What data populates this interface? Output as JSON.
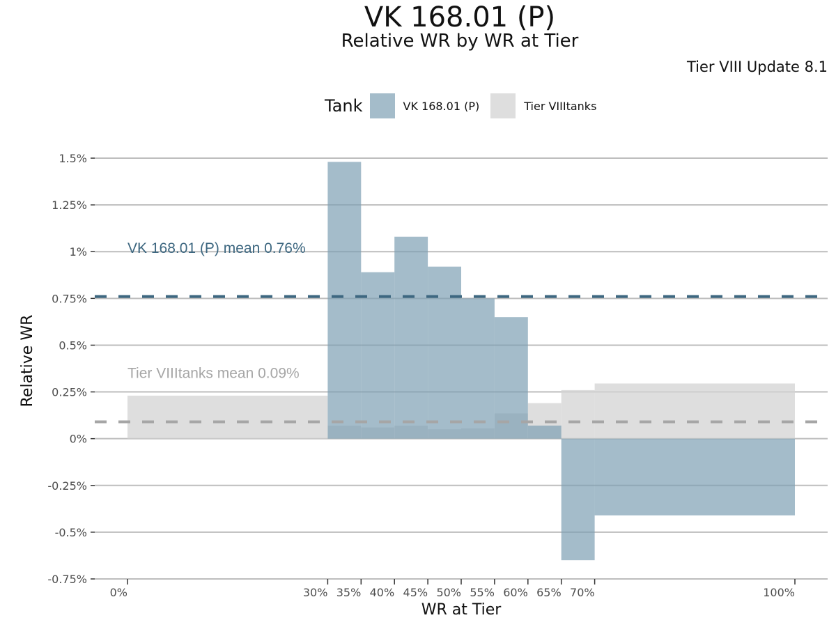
{
  "chart_data": {
    "type": "bar",
    "title": "VK 168.01 (P)",
    "subtitle": "Relative WR by WR at Tier",
    "caption": "Tier VIII Update 8.1",
    "xlabel": "WR at Tier",
    "ylabel": "Relative WR",
    "xlim": [
      -2.5,
      105
    ],
    "ylim": [
      -0.75,
      1.5
    ],
    "x_ticks": [
      {
        "value": 0,
        "label": "0%"
      },
      {
        "value": 30,
        "label": "30%"
      },
      {
        "value": 35,
        "label": "35%"
      },
      {
        "value": 40,
        "label": "40%"
      },
      {
        "value": 45,
        "label": "45%"
      },
      {
        "value": 50,
        "label": "50%"
      },
      {
        "value": 55,
        "label": "55%"
      },
      {
        "value": 60,
        "label": "60%"
      },
      {
        "value": 65,
        "label": "65%"
      },
      {
        "value": 70,
        "label": "70%"
      },
      {
        "value": 100,
        "label": "100%"
      }
    ],
    "y_ticks": [
      {
        "value": 1.5,
        "label": "1.5%"
      },
      {
        "value": 1.25,
        "label": "1.25%"
      },
      {
        "value": 1.0,
        "label": "1%"
      },
      {
        "value": 0.75,
        "label": "0.75%"
      },
      {
        "value": 0.5,
        "label": "0.5%"
      },
      {
        "value": 0.25,
        "label": "0.25%"
      },
      {
        "value": 0,
        "label": "0%"
      },
      {
        "value": -0.25,
        "label": "-0.25%"
      },
      {
        "value": -0.5,
        "label": "-0.5%"
      },
      {
        "value": -0.75,
        "label": "-0.75%"
      }
    ],
    "grid": true,
    "legend": {
      "title": "Tank",
      "position": "top",
      "entries": [
        {
          "label": "VK 168.01 (P)",
          "color": "#7d9fb3"
        },
        {
          "label": "Tier VIIItanks",
          "color": "#d3d3d3"
        }
      ]
    },
    "series": [
      {
        "name": "Tier VIIItanks",
        "color": "#d3d3d3",
        "opacity": 0.75,
        "bins": [
          {
            "x0": 0,
            "x1": 30,
            "value": 0.23
          },
          {
            "x0": 30,
            "x1": 35,
            "value": 0.07
          },
          {
            "x0": 35,
            "x1": 40,
            "value": 0.06
          },
          {
            "x0": 40,
            "x1": 45,
            "value": 0.07
          },
          {
            "x0": 45,
            "x1": 50,
            "value": 0.05
          },
          {
            "x0": 50,
            "x1": 55,
            "value": 0.055
          },
          {
            "x0": 55,
            "x1": 60,
            "value": 0.135
          },
          {
            "x0": 60,
            "x1": 65,
            "value": 0.19
          },
          {
            "x0": 65,
            "x1": 70,
            "value": 0.26
          },
          {
            "x0": 70,
            "x1": 100,
            "value": 0.295
          }
        ],
        "mean": 0.09,
        "mean_label": "Tier VIIItanks mean 0.09%",
        "mean_color": "#a6a6a6"
      },
      {
        "name": "VK 168.01 (P)",
        "color": "#7d9fb3",
        "opacity": 0.7,
        "bins": [
          {
            "x0": 30,
            "x1": 35,
            "value": 1.48
          },
          {
            "x0": 35,
            "x1": 40,
            "value": 0.89
          },
          {
            "x0": 40,
            "x1": 45,
            "value": 1.08
          },
          {
            "x0": 45,
            "x1": 50,
            "value": 0.92
          },
          {
            "x0": 50,
            "x1": 55,
            "value": 0.75
          },
          {
            "x0": 55,
            "x1": 60,
            "value": 0.65
          },
          {
            "x0": 60,
            "x1": 65,
            "value": 0.07
          },
          {
            "x0": 65,
            "x1": 70,
            "value": -0.65
          },
          {
            "x0": 70,
            "x1": 100,
            "value": -0.41
          }
        ],
        "mean": 0.76,
        "mean_label": "VK 168.01 (P) mean 0.76%",
        "mean_color": "#3d6780"
      }
    ]
  }
}
